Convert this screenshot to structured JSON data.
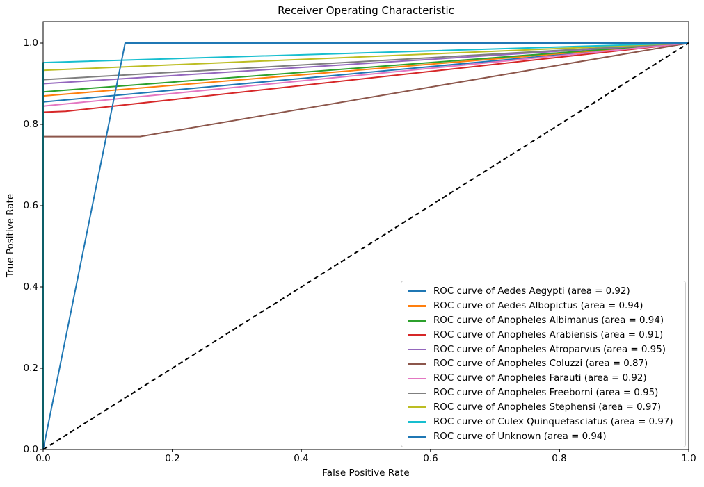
{
  "chart_data": {
    "type": "line",
    "title": "Receiver Operating Characteristic",
    "xlabel": "False Positive Rate",
    "ylabel": "True Positive Rate",
    "xlim": [
      0.0,
      1.0
    ],
    "ylim": [
      0.0,
      1.05
    ],
    "x_ticks": [
      "0.0",
      "0.2",
      "0.4",
      "0.6",
      "0.8",
      "1.0"
    ],
    "y_ticks": [
      "0.0",
      "0.2",
      "0.4",
      "0.6",
      "0.8",
      "1.0"
    ],
    "grid": false,
    "legend_position": "lower right",
    "series": [
      {
        "name": "ROC curve of Aedes Aegypti (area = 0.92)",
        "class": "Aedes Aegypti",
        "auc": 0.92,
        "color": "#1f77b4",
        "points": [
          [
            0,
            0
          ],
          [
            0,
            0.855
          ],
          [
            1,
            1
          ]
        ]
      },
      {
        "name": "ROC curve of Aedes Albopictus (area = 0.94)",
        "class": "Aedes Albopictus",
        "auc": 0.94,
        "color": "#ff7f0e",
        "points": [
          [
            0,
            0
          ],
          [
            0,
            0.87
          ],
          [
            1,
            1
          ]
        ]
      },
      {
        "name": "ROC curve of Anopheles Albimanus (area = 0.94)",
        "class": "Anopheles Albimanus",
        "auc": 0.94,
        "color": "#2ca02c",
        "points": [
          [
            0,
            0
          ],
          [
            0,
            0.88
          ],
          [
            1,
            1
          ]
        ]
      },
      {
        "name": "ROC curve of Anopheles Arabiensis (area = 0.91)",
        "class": "Anopheles Arabiensis",
        "auc": 0.91,
        "color": "#d62728",
        "points": [
          [
            0,
            0
          ],
          [
            0,
            0.83
          ],
          [
            0.035,
            0.832
          ],
          [
            1,
            1
          ]
        ]
      },
      {
        "name": "ROC curve of Anopheles Atroparvus (area = 0.95)",
        "class": "Anopheles Atroparvus",
        "auc": 0.95,
        "color": "#9467bd",
        "points": [
          [
            0,
            0
          ],
          [
            0,
            0.9
          ],
          [
            1,
            1
          ]
        ]
      },
      {
        "name": "ROC curve of Anopheles Coluzzi (area = 0.87)",
        "class": "Anopheles Coluzzi",
        "auc": 0.87,
        "color": "#8c564b",
        "points": [
          [
            0,
            0
          ],
          [
            0,
            0.77
          ],
          [
            0.15,
            0.77
          ],
          [
            1,
            1
          ]
        ]
      },
      {
        "name": "ROC curve of Anopheles Farauti (area = 0.92)",
        "class": "Anopheles Farauti",
        "auc": 0.92,
        "color": "#e377c2",
        "points": [
          [
            0,
            0
          ],
          [
            0,
            0.845
          ],
          [
            1,
            1
          ]
        ]
      },
      {
        "name": "ROC curve of Anopheles Freeborni (area = 0.95)",
        "class": "Anopheles Freeborni",
        "auc": 0.95,
        "color": "#7f7f7f",
        "points": [
          [
            0,
            0
          ],
          [
            0,
            0.91
          ],
          [
            1,
            1
          ]
        ]
      },
      {
        "name": "ROC curve of Anopheles Stephensi (area = 0.97)",
        "class": "Anopheles Stephensi",
        "auc": 0.97,
        "color": "#bcbd22",
        "points": [
          [
            0,
            0
          ],
          [
            0,
            0.933
          ],
          [
            1,
            1
          ]
        ]
      },
      {
        "name": "ROC curve of Culex Quinquefasciatus (area = 0.97)",
        "class": "Culex Quinquefasciatus",
        "auc": 0.97,
        "color": "#17becf",
        "points": [
          [
            0,
            0
          ],
          [
            0,
            0.952
          ],
          [
            1,
            1
          ]
        ]
      },
      {
        "name": "ROC curve of Unknown (area = 0.94)",
        "class": "Unknown",
        "auc": 0.94,
        "color": "#1f77b4",
        "points": [
          [
            0,
            0
          ],
          [
            0.127,
            1
          ],
          [
            1,
            1
          ]
        ]
      }
    ],
    "baseline": {
      "name": "chance diagonal",
      "color": "#000000",
      "style": "dashed",
      "points": [
        [
          0,
          0
        ],
        [
          1,
          1
        ]
      ]
    }
  }
}
